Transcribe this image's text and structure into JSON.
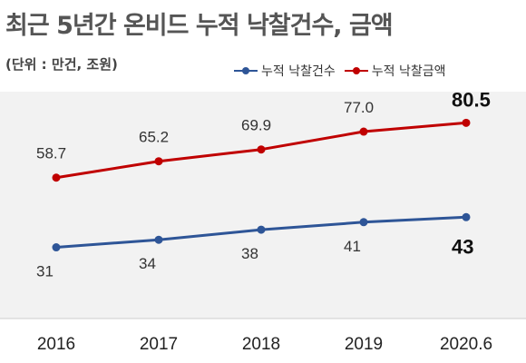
{
  "title": "최근 5년간 온비드 누적 낙찰건수, 금액",
  "unit_note": "(단위 : 만건, 조원)",
  "colors": {
    "count_series": "#2e5597",
    "amount_series": "#c00000",
    "plot_background": "#f2f2f2"
  },
  "chart_data": {
    "type": "line",
    "categories": [
      "2016",
      "2017",
      "2018",
      "2019",
      "2020.6"
    ],
    "series": [
      {
        "name": "누적 낙찰건수",
        "values": [
          31,
          34,
          38,
          41,
          43
        ],
        "labels": [
          "31",
          "34",
          "38",
          "41",
          "43"
        ]
      },
      {
        "name": "누적 낙찰금액",
        "values": [
          58.7,
          65.2,
          69.9,
          77.0,
          80.5
        ],
        "labels": [
          "58.7",
          "65.2",
          "69.9",
          "77.0",
          "80.5"
        ]
      }
    ],
    "last_point_labels_bold": true,
    "legend_position": "top-right",
    "grid": false,
    "ylim": [
      20,
      90
    ]
  }
}
